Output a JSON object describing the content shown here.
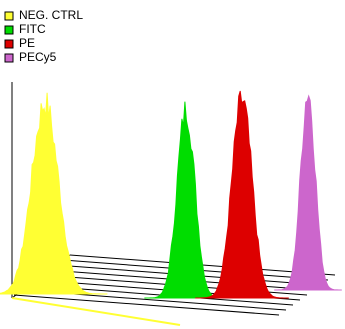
{
  "chart_data": {
    "type": "histogram-overlay-3d",
    "series": [
      {
        "name": "NEG. CTRL",
        "color": "#ffff33"
      },
      {
        "name": "FITC",
        "color": "#00dd00"
      },
      {
        "name": "PE",
        "color": "#dd0000"
      },
      {
        "name": "PECy5",
        "color": "#cc66cc"
      }
    ]
  }
}
